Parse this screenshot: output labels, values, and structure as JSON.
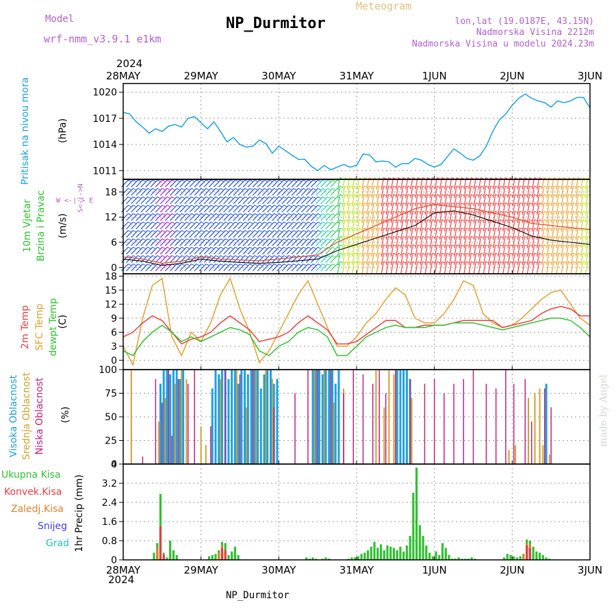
{
  "header": {
    "model_label": "Model",
    "model_name": "wrf-nmm_v3.9.1  e1km",
    "title": "NP_Durmitor",
    "meteogram": "Meteogram",
    "lonlat": "lon,lat (19.0187E, 43.15N)",
    "altitude": "Nadmorska Visina 2212m",
    "model_altitude": "Nadmorska Visina u modelu 2024.23m",
    "footer": "NP_Durmitor",
    "credit": "made by Angel",
    "year_top": "2024",
    "year_bottom": "2024"
  },
  "colors": {
    "pressure": "#1ca0e0",
    "temp": "#e84040",
    "sfc_temp": "#e0a030",
    "dewpt": "#30c030",
    "high_cloud": "#1ca0e0",
    "mid_cloud": "#d0a030",
    "low_cloud": "#c02080",
    "precip": "#30c030",
    "conv": "#e04040",
    "zaledj": "#e08030",
    "snow": "#4040e0",
    "grad": "#20c0c0"
  },
  "chart_data": [
    {
      "id": "pressure",
      "type": "line",
      "x_dates": [
        "28MAY",
        "29MAY",
        "30MAY",
        "31MAY",
        "1JUN",
        "2JUN",
        "3JUN"
      ],
      "xlim_hours": [
        0,
        144
      ],
      "ylabel": "Pritisak na nivou mora",
      "unit": "(hPa)",
      "ylim": [
        1010,
        1021
      ],
      "yticks": [
        1011,
        1014,
        1017,
        1020
      ],
      "grid": true,
      "x": [
        0,
        2,
        4,
        6,
        8,
        10,
        12,
        14,
        16,
        18,
        20,
        22,
        24,
        26,
        28,
        30,
        32,
        34,
        36,
        38,
        40,
        42,
        44,
        46,
        48,
        50,
        52,
        54,
        56,
        58,
        60,
        62,
        64,
        66,
        68,
        70,
        72,
        74,
        76,
        78,
        80,
        82,
        84,
        86,
        88,
        90,
        92,
        94,
        96,
        98,
        100,
        102,
        104,
        106,
        108,
        110,
        112,
        114,
        116,
        118,
        120,
        122,
        124,
        126,
        128,
        130,
        132,
        134,
        136,
        138,
        140,
        142,
        144
      ],
      "values": [
        1017.7,
        1017.5,
        1016.6,
        1016.0,
        1015.3,
        1015.8,
        1015.5,
        1016.1,
        1016.3,
        1016.0,
        1017.0,
        1017.2,
        1016.5,
        1015.8,
        1016.6,
        1015.5,
        1014.3,
        1014.8,
        1014.0,
        1013.7,
        1013.8,
        1014.5,
        1014.1,
        1013.0,
        1013.8,
        1013.3,
        1012.8,
        1012.3,
        1012.3,
        1011.5,
        1011.0,
        1011.6,
        1011.1,
        1011.4,
        1011.7,
        1011.4,
        1011.6,
        1012.9,
        1012.8,
        1012.0,
        1012.1,
        1012.0,
        1011.4,
        1011.8,
        1011.8,
        1012.4,
        1012.2,
        1011.7,
        1011.4,
        1011.7,
        1012.6,
        1013.5,
        1013.0,
        1012.4,
        1012.2,
        1012.7,
        1013.8,
        1015.5,
        1016.8,
        1017.5,
        1018.5,
        1019.3,
        1019.8,
        1019.3,
        1019.0,
        1018.8,
        1018.3,
        1019.0,
        1018.8,
        1019.0,
        1019.4,
        1019.4,
        1018.2
      ]
    },
    {
      "id": "wind",
      "type": "line",
      "x_dates": [
        "28MAY",
        "29MAY",
        "30MAY",
        "31MAY",
        "1JUN",
        "2JUN",
        "3JUN"
      ],
      "xlim_hours": [
        0,
        144
      ],
      "ylabel": "10m Vjetar Brzina i Pravac",
      "unit": "(m/s)",
      "compass": [
        "N",
        "W <-|-> E",
        "S"
      ],
      "ylim": [
        -1.5,
        21
      ],
      "yticks": [
        0,
        6,
        12,
        18
      ],
      "grid": true,
      "x": [
        0,
        6,
        12,
        18,
        24,
        30,
        36,
        42,
        48,
        54,
        60,
        66,
        72,
        78,
        84,
        90,
        96,
        102,
        108,
        114,
        120,
        126,
        132,
        138,
        144
      ],
      "speed": [
        2.0,
        1.5,
        0.5,
        1.0,
        2.0,
        1.5,
        1.2,
        1.0,
        1.2,
        1.6,
        2.0,
        4.0,
        5.5,
        7.0,
        8.5,
        10.0,
        13.0,
        13.5,
        12.5,
        11.0,
        9.5,
        7.5,
        6.5,
        6.0,
        5.5
      ],
      "gust": [
        2.5,
        2.0,
        1.0,
        1.5,
        2.5,
        2.0,
        1.8,
        1.6,
        2.0,
        2.5,
        3.0,
        6.0,
        8.0,
        10.0,
        12.0,
        14.0,
        15.0,
        14.5,
        14.0,
        13.0,
        12.0,
        10.5,
        10.0,
        9.5,
        9.0
      ]
    },
    {
      "id": "temperature",
      "type": "line",
      "x_dates": [
        "28MAY",
        "29MAY",
        "30MAY",
        "31MAY",
        "1JUN",
        "2JUN",
        "3JUN"
      ],
      "xlim_hours": [
        0,
        144
      ],
      "ylabel": [
        "2m Temp",
        "SFC Temp",
        "dewpt Temp"
      ],
      "unit": "(C)",
      "ylim": [
        -2,
        18.5
      ],
      "yticks": [
        0,
        3,
        6,
        9,
        12,
        15,
        18
      ],
      "grid": true,
      "x": [
        0,
        3,
        6,
        9,
        12,
        15,
        18,
        21,
        24,
        27,
        30,
        33,
        36,
        39,
        42,
        45,
        48,
        51,
        54,
        57,
        60,
        63,
        66,
        69,
        72,
        75,
        78,
        81,
        84,
        87,
        90,
        93,
        96,
        99,
        102,
        105,
        108,
        111,
        114,
        117,
        120,
        123,
        126,
        129,
        132,
        135,
        138,
        141,
        144
      ],
      "series": [
        {
          "name": "2m Temp",
          "values": [
            5,
            6,
            8,
            9.5,
            8.5,
            6,
            3.5,
            4.5,
            5,
            6,
            8,
            9.5,
            8,
            6.5,
            4,
            4.5,
            5,
            6,
            8,
            9.5,
            8,
            6.5,
            3.5,
            3.5,
            4,
            5.5,
            7,
            8.5,
            8.5,
            7,
            7,
            7.5,
            7.5,
            7.5,
            8,
            8.5,
            8.5,
            8.5,
            8.5,
            7,
            7.5,
            8,
            8.5,
            10,
            11,
            11.5,
            11,
            9.5,
            9.5
          ]
        },
        {
          "name": "SFC Temp",
          "values": [
            3,
            -1,
            9,
            16,
            17.5,
            5,
            1,
            6,
            4,
            8,
            14,
            17.5,
            11,
            6,
            -0.5,
            2,
            6,
            10,
            14,
            17,
            12,
            7,
            3,
            3,
            5,
            8,
            10,
            13,
            15.5,
            14,
            9,
            8,
            8,
            10,
            13,
            17,
            16,
            10,
            8,
            7,
            7.5,
            9,
            11,
            13,
            14.5,
            15,
            12,
            9,
            7.5
          ]
        },
        {
          "name": "dewpt Temp",
          "values": [
            2,
            1,
            4,
            6,
            7.5,
            6,
            4,
            5,
            4,
            5,
            6,
            7,
            6.5,
            5.5,
            2,
            1,
            3,
            4,
            6,
            7,
            6.5,
            5,
            1,
            1,
            3,
            5,
            6,
            7,
            7.5,
            7,
            7,
            7,
            7.5,
            7.5,
            8,
            8,
            8,
            7.5,
            7,
            6.5,
            7,
            7.5,
            8,
            8.5,
            9,
            9,
            8.5,
            7,
            5
          ]
        }
      ]
    },
    {
      "id": "clouds",
      "type": "bar",
      "x_dates": [
        "28MAY",
        "29MAY",
        "30MAY",
        "31MAY",
        "1JUN",
        "2JUN",
        "3JUN"
      ],
      "xlim_hours": [
        0,
        144
      ],
      "ylabel": [
        "Visoka Oblacnost",
        "Srednja Oblacnost",
        "Niska Oblacnost"
      ],
      "unit": "(%)",
      "ylim": [
        0,
        100
      ],
      "yticks": [
        0,
        25,
        50,
        75,
        100
      ],
      "grid": true,
      "series": [
        {
          "name": "Visoka Oblacnost",
          "x": [
            11.5,
            12.5,
            13.5,
            14.5,
            15.5,
            16.5,
            17.5,
            18.5,
            27.5,
            28.5,
            29.5,
            30.5,
            31.5,
            32.5,
            33.5,
            34.5,
            35.5,
            36.5,
            37.5,
            38.5,
            39.5,
            40.5,
            41.5,
            42.5,
            43.5,
            44.5,
            45.5,
            46.5,
            47.5,
            58.5,
            59.5,
            60.5,
            61.5,
            62.5,
            63.5,
            64.5,
            65.5,
            66.5,
            84.5,
            85.5,
            86.5,
            87.5,
            88.5,
            130.5
          ],
          "values": [
            85,
            100,
            100,
            95,
            100,
            100,
            90,
            100,
            80,
            100,
            95,
            100,
            100,
            90,
            100,
            100,
            85,
            100,
            100,
            95,
            100,
            100,
            100,
            80,
            95,
            100,
            100,
            85,
            90,
            100,
            100,
            100,
            95,
            100,
            100,
            100,
            85,
            100,
            100,
            100,
            100,
            100,
            90,
            85
          ]
        },
        {
          "name": "Srednja Oblacnost",
          "x": [
            2.5,
            11,
            13,
            16,
            18,
            19.5,
            24,
            25.5,
            30,
            35,
            38,
            41,
            44,
            46,
            59,
            62,
            65,
            68,
            78,
            80.5,
            82,
            83.5,
            89,
            119,
            121,
            125,
            127,
            128.5,
            129.5,
            131.5
          ],
          "values": [
            100,
            45,
            70,
            85,
            100,
            90,
            40,
            20,
            90,
            100,
            60,
            100,
            100,
            90,
            100,
            100,
            65,
            80,
            100,
            60,
            100,
            95,
            70,
            15,
            20,
            70,
            75,
            80,
            20,
            10
          ]
        },
        {
          "name": "Niska Oblacnost",
          "x": [
            6,
            10,
            12,
            14,
            15,
            17,
            20,
            22,
            27,
            31.5,
            36,
            40,
            46.5,
            53,
            57,
            60,
            64,
            68,
            71,
            74,
            77,
            79,
            81,
            84,
            88.5,
            93,
            96,
            99,
            102,
            105,
            108,
            112,
            115,
            118,
            120.5,
            124,
            126,
            130,
            132
          ],
          "values": [
            8,
            90,
            65,
            100,
            30,
            90,
            85,
            100,
            40,
            100,
            95,
            100,
            60,
            75,
            100,
            100,
            100,
            75,
            100,
            95,
            85,
            100,
            75,
            100,
            90,
            85,
            90,
            75,
            85,
            90,
            100,
            85,
            80,
            100,
            85,
            90,
            45,
            80,
            60
          ]
        }
      ]
    },
    {
      "id": "precipitation",
      "type": "bar",
      "x_dates": [
        "28MAY",
        "29MAY",
        "30MAY",
        "31MAY",
        "1JUN",
        "2JUN",
        "3JUN"
      ],
      "xlim_hours": [
        0,
        144
      ],
      "ylabel": "1hr Precip (mm)",
      "legend": [
        "Ukupna Kisa",
        "Konvek.Kisa",
        "Zaledj.Kisa",
        "Snijeg",
        "Grad"
      ],
      "ylim": [
        0,
        4
      ],
      "yticks": [
        0,
        0.8,
        1.6,
        2.4,
        3.2,
        4
      ],
      "grid": true,
      "series": [
        {
          "name": "Ukupna Kisa",
          "x": [
            9.5,
            10.5,
            11.5,
            12.5,
            13.5,
            14.5,
            15.5,
            16.5,
            26.5,
            27.5,
            28.5,
            29.5,
            30.5,
            31.5,
            32.5,
            33.5,
            34.5,
            35.5,
            56.5,
            57.5,
            58.5,
            59.5,
            61.5,
            62.5,
            63.5,
            69.5,
            70.5,
            71.5,
            72.5,
            73.5,
            74.5,
            75.5,
            76.5,
            77.5,
            78.5,
            79.5,
            80.5,
            81.5,
            82.5,
            83.5,
            84.5,
            85.5,
            86.5,
            87.5,
            88.5,
            89.5,
            90.5,
            91.5,
            92.5,
            93.5,
            94.5,
            95.5,
            96.5,
            97.5,
            98.5,
            99.5,
            100.5,
            101.5,
            102.5,
            103.5,
            104.5,
            105.5,
            106.5,
            107.5,
            108.5,
            117.5,
            118.5,
            119.5,
            120.5,
            121.5,
            122.5,
            123.5,
            124.5,
            125.5,
            126.5,
            127.5,
            128.5,
            129.5,
            130.5,
            131.5
          ],
          "values": [
            0.3,
            0.7,
            2.75,
            0.3,
            0.1,
            0.8,
            0.4,
            0.2,
            0.15,
            0.2,
            0.25,
            0.4,
            0.75,
            0.7,
            0.2,
            0.35,
            0.55,
            0.2,
            0.1,
            0.05,
            0.1,
            0.05,
            0.05,
            0.1,
            0.05,
            0.05,
            0.1,
            0.1,
            0.15,
            0.25,
            0.3,
            0.4,
            0.55,
            0.75,
            0.5,
            0.65,
            0.4,
            0.6,
            0.55,
            0.5,
            0.4,
            0.55,
            0.35,
            0.6,
            1.0,
            2.8,
            3.85,
            1.45,
            1.0,
            0.6,
            0.3,
            0.15,
            0.35,
            0.2,
            0.7,
            0.5,
            0.2,
            0.05,
            0.05,
            0.1,
            0.05,
            0.05,
            0.05,
            0.1,
            0.05,
            0.1,
            0.25,
            0.2,
            0.15,
            0.1,
            0.15,
            0.25,
            0.85,
            0.8,
            0.55,
            0.35,
            0.3,
            0.2,
            0.1,
            0.05
          ]
        },
        {
          "name": "Konvek.Kisa",
          "x": [
            11.5,
            12.5,
            30.5,
            31.5,
            124.5,
            125.5
          ],
          "values": [
            1.4,
            0.2,
            0.5,
            0.4,
            0.6,
            0.5
          ]
        },
        {
          "name": "Zaledj.Kisa",
          "x": [
            10.5,
            11.5,
            29.5,
            30.5,
            123.5,
            124.5,
            125.5
          ],
          "values": [
            0.5,
            1.0,
            0.3,
            0.6,
            0.2,
            0.7,
            0.65
          ]
        }
      ]
    }
  ]
}
